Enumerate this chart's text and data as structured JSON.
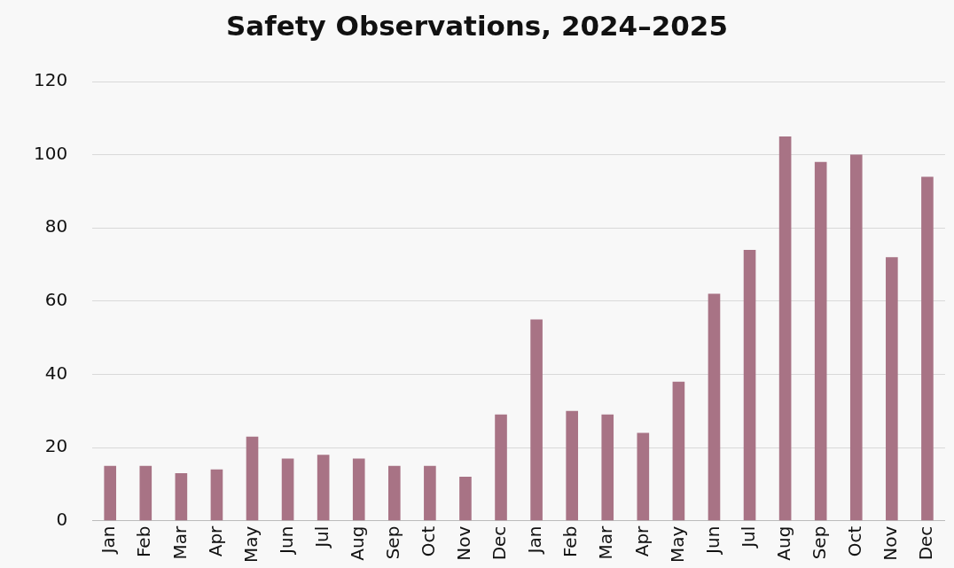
{
  "chart_data": {
    "type": "bar",
    "title": "Safety Observations, 2024–2025",
    "categories": [
      "Jan",
      "Feb",
      "Mar",
      "Apr",
      "May",
      "Jun",
      "Jul",
      "Aug",
      "Sep",
      "Oct",
      "Nov",
      "Dec",
      "Jan",
      "Feb",
      "Mar",
      "Apr",
      "May",
      "Jun",
      "Jul",
      "Aug",
      "Sep",
      "Oct",
      "Nov",
      "Dec"
    ],
    "values": [
      15,
      15,
      13,
      14,
      23,
      17,
      18,
      17,
      15,
      15,
      12,
      29,
      55,
      30,
      29,
      24,
      38,
      62,
      74,
      105,
      98,
      100,
      72,
      94
    ],
    "color": "#a87385",
    "ylim": [
      0,
      120
    ],
    "yticks": [
      0,
      20,
      40,
      60,
      80,
      100,
      120
    ],
    "grid": "y",
    "legend": false
  }
}
